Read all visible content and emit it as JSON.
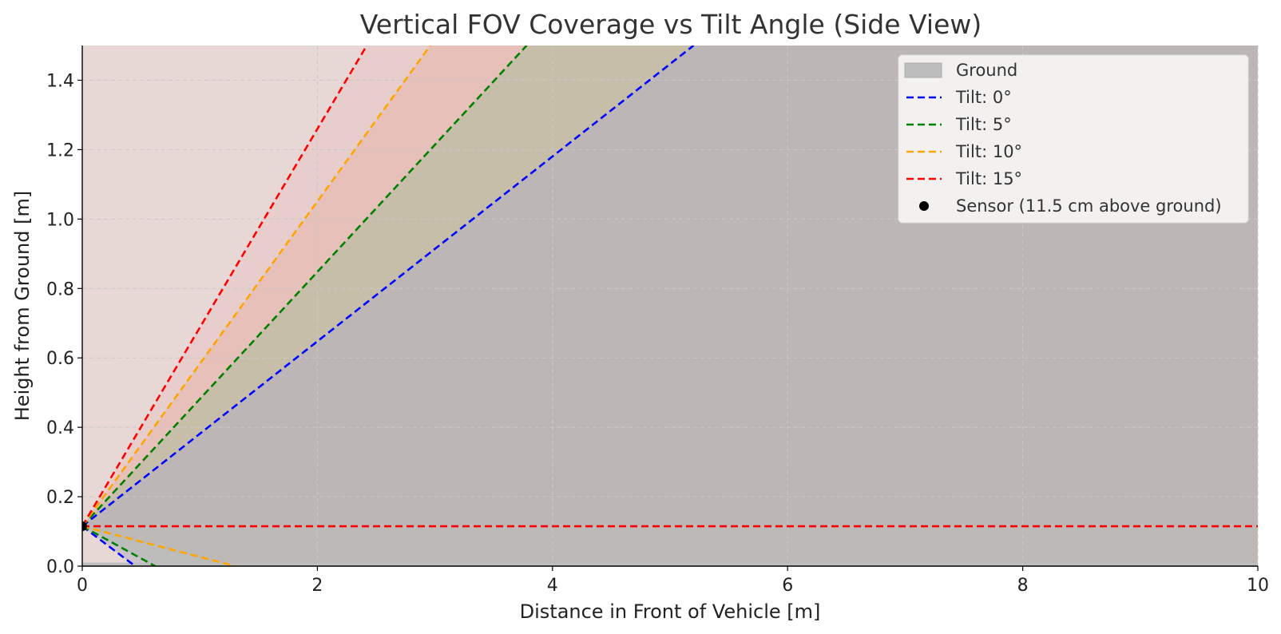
{
  "chart_data": {
    "type": "line",
    "title": "Vertical FOV Coverage vs Tilt Angle (Side View)",
    "xlabel": "Distance in Front of Vehicle [m]",
    "ylabel": "Height from Ground [m]",
    "xlim": [
      0,
      10
    ],
    "ylim": [
      0,
      1.5
    ],
    "x_ticks": [
      "0",
      "2",
      "4",
      "6",
      "8",
      "10"
    ],
    "y_ticks": [
      "0.0",
      "0.2",
      "0.4",
      "0.6",
      "0.8",
      "1.0",
      "1.2",
      "1.4"
    ],
    "grid": true,
    "legend_position": "top-right",
    "sensor": {
      "name": "Sensor (11.5 cm above ground)",
      "x": 0,
      "y": 0.115,
      "color": "#000000"
    },
    "ground": {
      "name": "Ground",
      "color": "#bdbdbd",
      "top": 0.01
    },
    "series": [
      {
        "name": "Tilt: 0°",
        "color": "#0000ff",
        "fill": "#b0c4de",
        "x": [
          0,
          5.2
        ],
        "upper": [
          0.115,
          1.5
        ],
        "lower_end_x": 0.45
      },
      {
        "name": "Tilt: 5°",
        "color": "#008000",
        "fill": "#a5d6a7",
        "x": [
          0,
          3.78
        ],
        "upper": [
          0.115,
          1.5
        ],
        "lower_end_x": 0.62
      },
      {
        "name": "Tilt: 10°",
        "color": "#ffa500",
        "fill": "#ffccbc",
        "x": [
          0,
          2.96
        ],
        "upper": [
          0.115,
          1.5
        ],
        "lower_end_x": 1.3
      },
      {
        "name": "Tilt: 15°",
        "color": "#ff0000",
        "fill": "#ffe4e8",
        "x": [
          0,
          2.42
        ],
        "upper": [
          0.115,
          1.5
        ],
        "lower_y": 0.115
      }
    ]
  }
}
